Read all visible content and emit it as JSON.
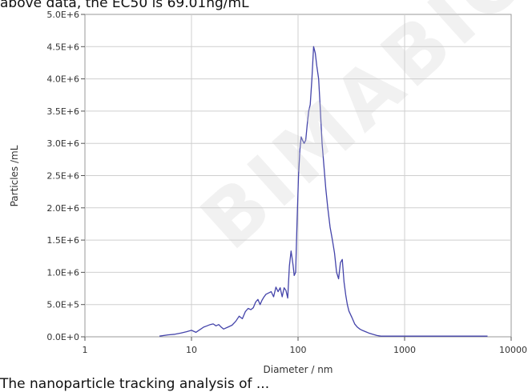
{
  "context": {
    "top_caption": "above data, the EC50 is 69.01ng/mL",
    "watermark": "BIMABIO C",
    "bottom_caption": "The nanoparticle tracking analysis of ..."
  },
  "chart_data": {
    "type": "line",
    "title": "",
    "xlabel": "Diameter / nm",
    "ylabel": "Particles /mL",
    "x_scale": "log",
    "xlim": [
      1,
      10000
    ],
    "ylim": [
      0,
      5000000
    ],
    "x_ticks": [
      1,
      10,
      100,
      1000,
      10000
    ],
    "x_tick_labels": [
      "1",
      "10",
      "100",
      "1000",
      "10000"
    ],
    "y_ticks": [
      0,
      500000,
      1000000,
      1500000,
      2000000,
      2500000,
      3000000,
      3500000,
      4000000,
      4500000,
      5000000
    ],
    "y_tick_labels": [
      "0.0E+0",
      "5.0E+5",
      "1.0E+6",
      "1.5E+6",
      "2.0E+6",
      "2.5E+6",
      "3.0E+6",
      "3.5E+6",
      "4.0E+6",
      "4.5E+6",
      "5.0E+6"
    ],
    "grid": true,
    "legend": "none",
    "line_color": "#4444aa",
    "series": [
      {
        "x": [
          5,
          6,
          7,
          8,
          9,
          10,
          11,
          12,
          13,
          14,
          15,
          16,
          17,
          18,
          19,
          20,
          22,
          24,
          26,
          28,
          30,
          32,
          34,
          36,
          38,
          40,
          42,
          44,
          46,
          48,
          50,
          53,
          56,
          59,
          62,
          65,
          68,
          71,
          74,
          77,
          80,
          83,
          86,
          88,
          90,
          92,
          95,
          98,
          101,
          104,
          107,
          110,
          114,
          118,
          122,
          126,
          130,
          135,
          140,
          145,
          150,
          156,
          162,
          168,
          175,
          182,
          190,
          200,
          210,
          220,
          230,
          240,
          250,
          260,
          270,
          280,
          290,
          300,
          320,
          340,
          360,
          380,
          400,
          430,
          460,
          500,
          550,
          600,
          700,
          1000,
          2000,
          4000,
          6000
        ],
        "values": [
          10000,
          30000,
          40000,
          60000,
          80000,
          100000,
          70000,
          110000,
          150000,
          170000,
          190000,
          200000,
          170000,
          190000,
          150000,
          120000,
          150000,
          180000,
          240000,
          320000,
          280000,
          390000,
          440000,
          420000,
          450000,
          540000,
          580000,
          500000,
          570000,
          620000,
          660000,
          680000,
          700000,
          620000,
          770000,
          700000,
          760000,
          620000,
          760000,
          720000,
          600000,
          1100000,
          1330000,
          1220000,
          1100000,
          950000,
          1000000,
          1800000,
          2500000,
          2900000,
          3100000,
          3050000,
          3000000,
          3050000,
          3300000,
          3500000,
          3600000,
          4000000,
          4500000,
          4400000,
          4200000,
          4000000,
          3500000,
          3000000,
          2650000,
          2300000,
          2000000,
          1700000,
          1500000,
          1300000,
          1000000,
          900000,
          1150000,
          1200000,
          850000,
          650000,
          500000,
          400000,
          300000,
          200000,
          150000,
          120000,
          100000,
          80000,
          60000,
          40000,
          20000,
          10000,
          10000,
          10000,
          10000,
          10000,
          10000
        ]
      }
    ]
  }
}
